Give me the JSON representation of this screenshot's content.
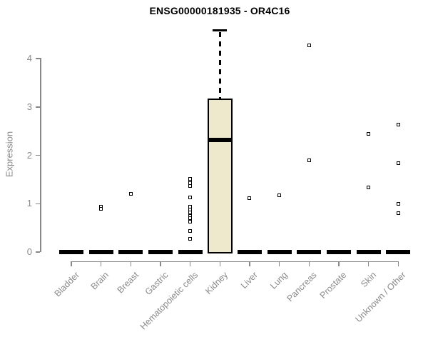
{
  "title": "ENSG00000181935 - OR4C16",
  "ylabel": "Expression",
  "colors": {
    "title": "#000000",
    "axis": "#888888",
    "axis_labels": "#8a8a8a",
    "box_fill": "#EEE8CD",
    "box_border": "#000000",
    "median": "#000000",
    "outlier_fill": "#ffffff"
  },
  "chart_data": {
    "type": "boxplot",
    "title": "ENSG00000181935 - OR4C16",
    "xlabel": "",
    "ylabel": "Expression",
    "ylim": [
      0,
      4
    ],
    "yticks": [
      0,
      1,
      2,
      3,
      4
    ],
    "grid": false,
    "legend": false,
    "categories": [
      "Bladder",
      "Brain",
      "Breast",
      "Gastric",
      "Hematopoietic cells",
      "Kidney",
      "Liver",
      "Lung",
      "Pancreas",
      "Prostate",
      "Skin",
      "Unknown / Other"
    ],
    "boxes": [
      {
        "category": "Bladder",
        "q1": 0,
        "median": 0,
        "q3": 0,
        "whisker_low": 0,
        "whisker_high": 0,
        "outliers": []
      },
      {
        "category": "Brain",
        "q1": 0,
        "median": 0,
        "q3": 0,
        "whisker_low": 0,
        "whisker_high": 0,
        "outliers": [
          0.94,
          0.89
        ]
      },
      {
        "category": "Breast",
        "q1": 0,
        "median": 0,
        "q3": 0,
        "whisker_low": 0,
        "whisker_high": 0,
        "outliers": [
          1.2
        ]
      },
      {
        "category": "Gastric",
        "q1": 0,
        "median": 0,
        "q3": 0,
        "whisker_low": 0,
        "whisker_high": 0,
        "outliers": []
      },
      {
        "category": "Hematopoietic cells",
        "q1": 0,
        "median": 0,
        "q3": 0,
        "whisker_low": 0,
        "whisker_high": 0,
        "outliers": [
          1.52,
          1.45,
          1.43,
          1.36,
          1.13,
          0.93,
          0.88,
          0.82,
          0.74,
          0.7,
          0.62,
          0.43,
          0.27
        ]
      },
      {
        "category": "Kidney",
        "q1": 0,
        "median": 2.32,
        "q3": 3.17,
        "whisker_low": 0,
        "whisker_high": 4.58,
        "outliers": []
      },
      {
        "category": "Liver",
        "q1": 0,
        "median": 0,
        "q3": 0,
        "whisker_low": 0,
        "whisker_high": 0,
        "outliers": [
          1.12
        ]
      },
      {
        "category": "Lung",
        "q1": 0,
        "median": 0,
        "q3": 0,
        "whisker_low": 0,
        "whisker_high": 0,
        "outliers": [
          1.17
        ]
      },
      {
        "category": "Pancreas",
        "q1": 0,
        "median": 0,
        "q3": 0,
        "whisker_low": 0,
        "whisker_high": 0,
        "outliers": [
          4.28,
          1.89
        ]
      },
      {
        "category": "Prostate",
        "q1": 0,
        "median": 0,
        "q3": 0,
        "whisker_low": 0,
        "whisker_high": 0,
        "outliers": []
      },
      {
        "category": "Skin",
        "q1": 0,
        "median": 0,
        "q3": 0,
        "whisker_low": 0,
        "whisker_high": 0,
        "outliers": [
          2.45,
          1.34
        ]
      },
      {
        "category": "Unknown / Other",
        "q1": 0,
        "median": 0,
        "q3": 0,
        "whisker_low": 0,
        "whisker_high": 0,
        "outliers": [
          2.63,
          1.84,
          0.99,
          0.8
        ]
      }
    ]
  }
}
